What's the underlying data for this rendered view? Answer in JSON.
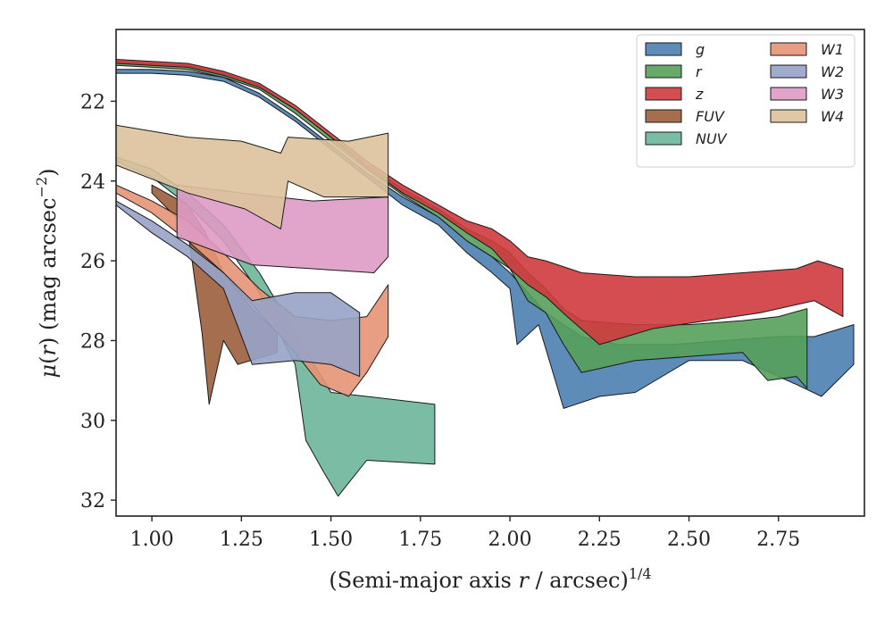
{
  "chart_data": {
    "type": "area",
    "xlabel": "(Semi-major axis r / arcsec)^1/4",
    "ylabel": "μ(r) (mag arcsec^−2)",
    "xlim": [
      0.9,
      2.99
    ],
    "ylim": [
      32.4,
      20.2
    ],
    "y_inverted": true,
    "grid": false,
    "legend_placement": "top-right",
    "x_ticks": [
      "1.00",
      "1.25",
      "1.50",
      "1.75",
      "2.00",
      "2.25",
      "2.50",
      "2.75"
    ],
    "y_ticks": [
      "22",
      "24",
      "26",
      "28",
      "30",
      "32"
    ],
    "series": [
      {
        "name": "g",
        "color": "#4c7fb0",
        "upper": [
          [
            0.9,
            21.2
          ],
          [
            1.0,
            21.2
          ],
          [
            1.1,
            21.25
          ],
          [
            1.2,
            21.4
          ],
          [
            1.3,
            21.8
          ],
          [
            1.4,
            22.4
          ],
          [
            1.5,
            23.1
          ],
          [
            1.6,
            23.8
          ],
          [
            1.7,
            24.4
          ],
          [
            1.8,
            24.9
          ],
          [
            1.88,
            25.5
          ],
          [
            1.95,
            25.9
          ],
          [
            2.0,
            26.3
          ],
          [
            2.05,
            26.8
          ],
          [
            2.1,
            27.3
          ],
          [
            2.15,
            27.6
          ],
          [
            2.2,
            27.9
          ],
          [
            2.3,
            28.1
          ],
          [
            2.45,
            28.1
          ],
          [
            2.6,
            28.0
          ],
          [
            2.75,
            27.9
          ],
          [
            2.85,
            27.9
          ],
          [
            2.96,
            27.6
          ]
        ],
        "lower": [
          [
            0.9,
            21.3
          ],
          [
            1.0,
            21.3
          ],
          [
            1.1,
            21.35
          ],
          [
            1.2,
            21.5
          ],
          [
            1.3,
            21.9
          ],
          [
            1.4,
            22.5
          ],
          [
            1.5,
            23.2
          ],
          [
            1.6,
            23.9
          ],
          [
            1.7,
            24.6
          ],
          [
            1.8,
            25.1
          ],
          [
            1.88,
            25.8
          ],
          [
            1.95,
            26.3
          ],
          [
            2.0,
            26.7
          ],
          [
            2.02,
            28.1
          ],
          [
            2.08,
            27.6
          ],
          [
            2.15,
            29.7
          ],
          [
            2.25,
            29.4
          ],
          [
            2.35,
            29.3
          ],
          [
            2.5,
            28.5
          ],
          [
            2.65,
            28.5
          ],
          [
            2.8,
            29.1
          ],
          [
            2.87,
            29.4
          ],
          [
            2.96,
            28.6
          ]
        ]
      },
      {
        "name": "r",
        "color": "#55a05a",
        "upper": [
          [
            0.9,
            21.0
          ],
          [
            1.0,
            21.05
          ],
          [
            1.1,
            21.1
          ],
          [
            1.2,
            21.3
          ],
          [
            1.3,
            21.6
          ],
          [
            1.4,
            22.2
          ],
          [
            1.5,
            22.9
          ],
          [
            1.6,
            23.6
          ],
          [
            1.7,
            24.2
          ],
          [
            1.8,
            24.7
          ],
          [
            1.88,
            25.2
          ],
          [
            1.95,
            25.5
          ],
          [
            2.0,
            25.8
          ],
          [
            2.05,
            26.3
          ],
          [
            2.1,
            26.7
          ],
          [
            2.15,
            27.2
          ],
          [
            2.2,
            27.5
          ],
          [
            2.35,
            27.6
          ],
          [
            2.5,
            27.6
          ],
          [
            2.65,
            27.5
          ],
          [
            2.75,
            27.4
          ],
          [
            2.83,
            27.2
          ]
        ],
        "lower": [
          [
            0.9,
            21.1
          ],
          [
            1.0,
            21.15
          ],
          [
            1.1,
            21.2
          ],
          [
            1.2,
            21.4
          ],
          [
            1.3,
            21.7
          ],
          [
            1.4,
            22.3
          ],
          [
            1.5,
            23.0
          ],
          [
            1.6,
            23.7
          ],
          [
            1.7,
            24.35
          ],
          [
            1.8,
            24.9
          ],
          [
            1.88,
            25.5
          ],
          [
            1.95,
            25.9
          ],
          [
            2.0,
            26.2
          ],
          [
            2.05,
            27.0
          ],
          [
            2.1,
            27.3
          ],
          [
            2.15,
            28.1
          ],
          [
            2.2,
            28.8
          ],
          [
            2.35,
            28.5
          ],
          [
            2.5,
            28.4
          ],
          [
            2.65,
            28.3
          ],
          [
            2.72,
            29.0
          ],
          [
            2.8,
            28.9
          ],
          [
            2.83,
            29.2
          ]
        ]
      },
      {
        "name": "z",
        "color": "#cf3a3e",
        "upper": [
          [
            0.9,
            20.95
          ],
          [
            1.0,
            21.0
          ],
          [
            1.1,
            21.05
          ],
          [
            1.2,
            21.25
          ],
          [
            1.3,
            21.55
          ],
          [
            1.4,
            22.1
          ],
          [
            1.5,
            22.8
          ],
          [
            1.6,
            23.5
          ],
          [
            1.7,
            24.1
          ],
          [
            1.8,
            24.6
          ],
          [
            1.88,
            25.0
          ],
          [
            1.95,
            25.2
          ],
          [
            2.0,
            25.5
          ],
          [
            2.05,
            25.9
          ],
          [
            2.1,
            26.0
          ],
          [
            2.2,
            26.3
          ],
          [
            2.35,
            26.4
          ],
          [
            2.5,
            26.4
          ],
          [
            2.65,
            26.3
          ],
          [
            2.8,
            26.2
          ],
          [
            2.86,
            26.0
          ],
          [
            2.93,
            26.2
          ]
        ],
        "lower": [
          [
            0.9,
            21.05
          ],
          [
            1.0,
            21.1
          ],
          [
            1.1,
            21.15
          ],
          [
            1.2,
            21.35
          ],
          [
            1.3,
            21.65
          ],
          [
            1.4,
            22.2
          ],
          [
            1.5,
            22.9
          ],
          [
            1.6,
            23.65
          ],
          [
            1.7,
            24.3
          ],
          [
            1.8,
            24.8
          ],
          [
            1.88,
            25.3
          ],
          [
            1.95,
            25.7
          ],
          [
            2.0,
            26.2
          ],
          [
            2.05,
            26.6
          ],
          [
            2.1,
            26.9
          ],
          [
            2.16,
            27.4
          ],
          [
            2.25,
            28.1
          ],
          [
            2.4,
            27.7
          ],
          [
            2.55,
            27.5
          ],
          [
            2.7,
            27.3
          ],
          [
            2.85,
            27.0
          ],
          [
            2.93,
            27.4
          ]
        ]
      },
      {
        "name": "FUV",
        "color": "#9b5e3c",
        "upper": [
          [
            1.0,
            24.1
          ],
          [
            1.1,
            24.6
          ],
          [
            1.15,
            25.3
          ],
          [
            1.2,
            26.3
          ],
          [
            1.28,
            27.2
          ],
          [
            1.35,
            27.8
          ]
        ],
        "lower": [
          [
            1.0,
            24.3
          ],
          [
            1.1,
            25.2
          ],
          [
            1.14,
            27.8
          ],
          [
            1.16,
            29.6
          ],
          [
            1.2,
            28.0
          ],
          [
            1.24,
            28.6
          ],
          [
            1.35,
            28.3
          ]
        ]
      },
      {
        "name": "NUV",
        "color": "#6cb59a",
        "upper": [
          [
            0.9,
            23.4
          ],
          [
            1.0,
            23.7
          ],
          [
            1.1,
            24.3
          ],
          [
            1.2,
            25.1
          ],
          [
            1.3,
            26.3
          ],
          [
            1.4,
            27.8
          ],
          [
            1.5,
            29.3
          ],
          [
            1.6,
            29.4
          ],
          [
            1.79,
            29.6
          ]
        ],
        "lower": [
          [
            0.9,
            23.5
          ],
          [
            1.0,
            23.9
          ],
          [
            1.1,
            24.6
          ],
          [
            1.2,
            25.5
          ],
          [
            1.3,
            26.8
          ],
          [
            1.4,
            28.6
          ],
          [
            1.43,
            30.5
          ],
          [
            1.48,
            31.3
          ],
          [
            1.52,
            31.9
          ],
          [
            1.6,
            31.0
          ],
          [
            1.79,
            31.1
          ]
        ]
      },
      {
        "name": "W1",
        "color": "#e59474",
        "upper": [
          [
            0.9,
            24.1
          ],
          [
            1.0,
            24.5
          ],
          [
            1.1,
            25.0
          ],
          [
            1.2,
            25.8
          ],
          [
            1.3,
            26.7
          ],
          [
            1.4,
            27.4
          ],
          [
            1.5,
            27.5
          ],
          [
            1.6,
            27.4
          ],
          [
            1.66,
            26.6
          ]
        ],
        "lower": [
          [
            0.9,
            24.3
          ],
          [
            1.0,
            24.8
          ],
          [
            1.1,
            25.5
          ],
          [
            1.2,
            26.3
          ],
          [
            1.3,
            27.3
          ],
          [
            1.4,
            28.3
          ],
          [
            1.47,
            29.1
          ],
          [
            1.55,
            29.4
          ],
          [
            1.6,
            28.8
          ],
          [
            1.66,
            27.9
          ]
        ]
      },
      {
        "name": "W2",
        "color": "#97a3c6",
        "upper": [
          [
            0.9,
            24.5
          ],
          [
            1.0,
            25.0
          ],
          [
            1.1,
            25.6
          ],
          [
            1.2,
            26.3
          ],
          [
            1.28,
            27.0
          ],
          [
            1.4,
            26.8
          ],
          [
            1.5,
            26.8
          ],
          [
            1.58,
            27.3
          ]
        ],
        "lower": [
          [
            0.9,
            24.6
          ],
          [
            1.0,
            25.3
          ],
          [
            1.1,
            25.9
          ],
          [
            1.2,
            26.7
          ],
          [
            1.28,
            28.6
          ],
          [
            1.4,
            28.5
          ],
          [
            1.5,
            28.6
          ],
          [
            1.58,
            28.9
          ]
        ]
      },
      {
        "name": "W3",
        "color": "#de9ac4",
        "upper": [
          [
            1.07,
            24.1
          ],
          [
            1.25,
            24.3
          ],
          [
            1.45,
            24.5
          ],
          [
            1.66,
            24.4
          ]
        ],
        "lower": [
          [
            1.07,
            25.4
          ],
          [
            1.28,
            26.1
          ],
          [
            1.45,
            26.2
          ],
          [
            1.62,
            26.3
          ],
          [
            1.66,
            25.9
          ]
        ]
      },
      {
        "name": "W4",
        "color": "#ddc29c",
        "upper": [
          [
            0.9,
            22.6
          ],
          [
            1.1,
            22.9
          ],
          [
            1.25,
            23.0
          ],
          [
            1.36,
            23.3
          ],
          [
            1.38,
            22.9
          ],
          [
            1.55,
            23.0
          ],
          [
            1.66,
            22.8
          ]
        ],
        "lower": [
          [
            0.9,
            23.6
          ],
          [
            1.1,
            24.3
          ],
          [
            1.26,
            24.7
          ],
          [
            1.36,
            25.2
          ],
          [
            1.38,
            24.0
          ],
          [
            1.48,
            24.4
          ],
          [
            1.66,
            24.4
          ]
        ]
      }
    ]
  }
}
